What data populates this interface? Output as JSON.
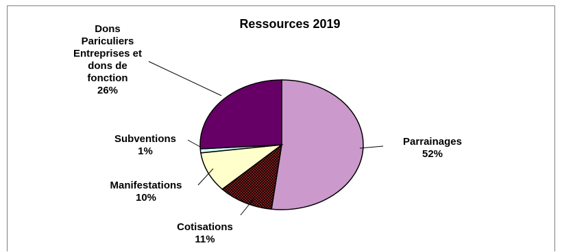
{
  "chart_data": {
    "type": "pie",
    "title": "Ressources 2019",
    "start_angle_deg": 0,
    "direction": "clockwise",
    "slices": [
      {
        "name": "Parrainages",
        "label_lines": [
          "Parrainages"
        ],
        "pct_label": "52%",
        "value": 52,
        "color": "#cc99cc",
        "pattern": null
      },
      {
        "name": "Cotisations",
        "label_lines": [
          "Cotisations"
        ],
        "pct_label": "11%",
        "value": 11,
        "color": "#2a0808",
        "pattern": "checker"
      },
      {
        "name": "Manifestations",
        "label_lines": [
          "Manifestations"
        ],
        "pct_label": "10%",
        "value": 10,
        "color": "#ffffcc",
        "pattern": null
      },
      {
        "name": "Subventions",
        "label_lines": [
          "Subventions"
        ],
        "pct_label": "1%",
        "value": 1,
        "color": "#ccffff",
        "pattern": null
      },
      {
        "name": "Dons Pariculiers Entreprises et dons de fonction",
        "label_lines": [
          "Dons",
          "Pariculiers",
          "Entreprises et",
          "dons de",
          "fonction"
        ],
        "pct_label": "26%",
        "value": 26,
        "color": "#660066",
        "pattern": null
      }
    ]
  }
}
